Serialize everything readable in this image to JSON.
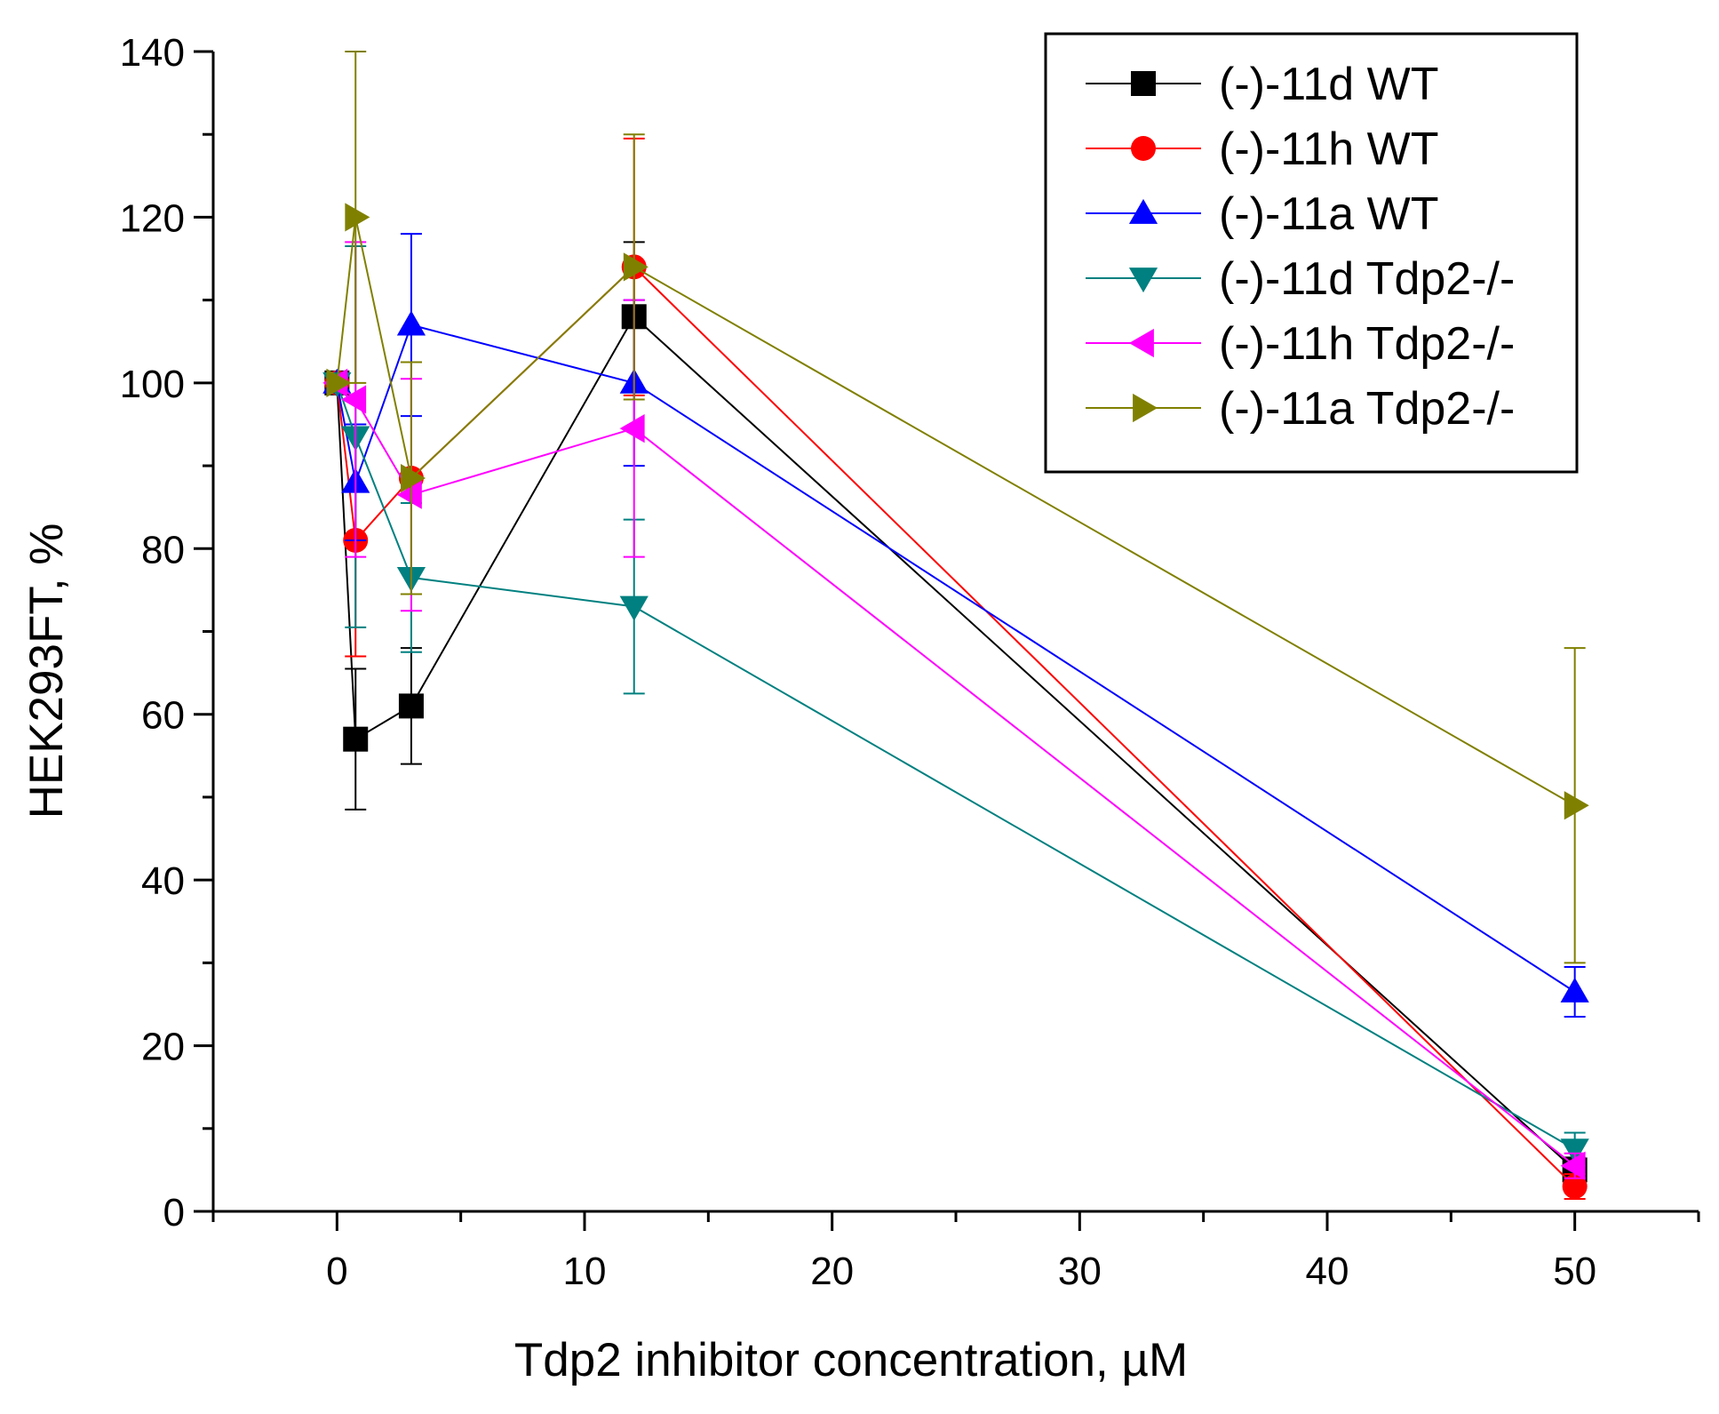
{
  "chart_data": {
    "type": "line",
    "title": "",
    "xlabel": "Tdp2 inhibitor concentration, µM",
    "ylabel": "HEK293FT, %",
    "xlim": [
      -5,
      55
    ],
    "ylim": [
      0,
      140
    ],
    "x_ticks": [
      0,
      10,
      20,
      30,
      40,
      50
    ],
    "y_ticks": [
      0,
      20,
      40,
      60,
      80,
      100,
      120,
      140
    ],
    "grid": false,
    "legend_position": "top-right",
    "x": [
      0,
      0.75,
      3,
      12,
      50
    ],
    "series": [
      {
        "name": "(-)-11d WT",
        "color": "#000000",
        "marker": "square",
        "values": [
          100,
          57,
          61,
          108,
          5
        ],
        "error": [
          0,
          8.5,
          7,
          9,
          1.5
        ]
      },
      {
        "name": "(-)-11h WT",
        "color": "#ff0000",
        "marker": "circle",
        "values": [
          100,
          81,
          88.5,
          114,
          3
        ],
        "error": [
          0,
          14,
          14,
          15.5,
          1.5
        ]
      },
      {
        "name": "(-)-11a WT",
        "color": "#0000ff",
        "marker": "triangle-up",
        "values": [
          100,
          88,
          107,
          100,
          26.5
        ],
        "error": [
          0,
          7,
          11,
          10,
          3
        ]
      },
      {
        "name": "(-)-11d Tdp2-/-",
        "color": "#008080",
        "marker": "triangle-down",
        "values": [
          100,
          93.5,
          76.5,
          73,
          7.5
        ],
        "error": [
          0,
          23,
          9,
          10.5,
          2
        ]
      },
      {
        "name": "(-)-11h Tdp2-/-",
        "color": "#ff00ff",
        "marker": "triangle-left",
        "values": [
          100,
          98,
          86.5,
          94.5,
          5.5
        ],
        "error": [
          0,
          19,
          14,
          15.5,
          1.5
        ]
      },
      {
        "name": "(-)-11a Tdp2-/-",
        "color": "#808000",
        "marker": "triangle-right",
        "values": [
          100,
          120,
          88.5,
          114,
          49
        ],
        "error": [
          0,
          20,
          14,
          16,
          19
        ]
      }
    ]
  }
}
